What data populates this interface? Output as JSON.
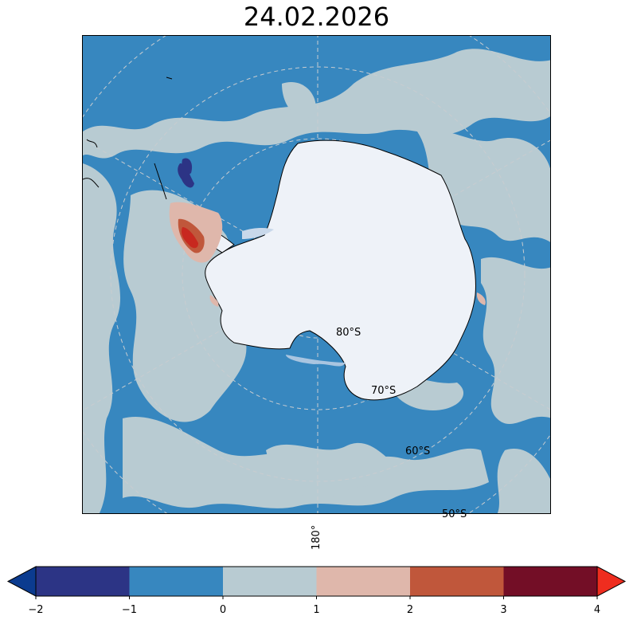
{
  "title": "24.02.2026",
  "map": {
    "projection": "south-polar-stereographic",
    "lat_labels": [
      "80°S",
      "70°S",
      "60°S",
      "50°S"
    ],
    "lon_label": "180°",
    "colors": {
      "ocean_anomaly_neg1": "#3787bf",
      "sea_ice_zero": "#b8cbd2",
      "land_ice": "#eef2f8",
      "positive_anomaly": "#dfb7ab",
      "strong_positive": "#c0573b",
      "darkest_positive": "#c8281f",
      "negative_strong": "#2c3485"
    }
  },
  "colorbar": {
    "ticks": [
      "−2",
      "−1",
      "0",
      "1",
      "2",
      "3",
      "4"
    ],
    "bins": [
      {
        "from": -2,
        "to": -1,
        "color": "#2c3485"
      },
      {
        "from": -1,
        "to": 0,
        "color": "#3787bf"
      },
      {
        "from": 0,
        "to": 1,
        "color": "#b8cbd2"
      },
      {
        "from": 1,
        "to": 2,
        "color": "#dfb7ab"
      },
      {
        "from": 2,
        "to": 3,
        "color": "#c0573b"
      },
      {
        "from": 3,
        "to": 4,
        "color": "#730e26"
      }
    ],
    "under_color": "#0b3b8f",
    "over_color": "#ef2d1f"
  }
}
